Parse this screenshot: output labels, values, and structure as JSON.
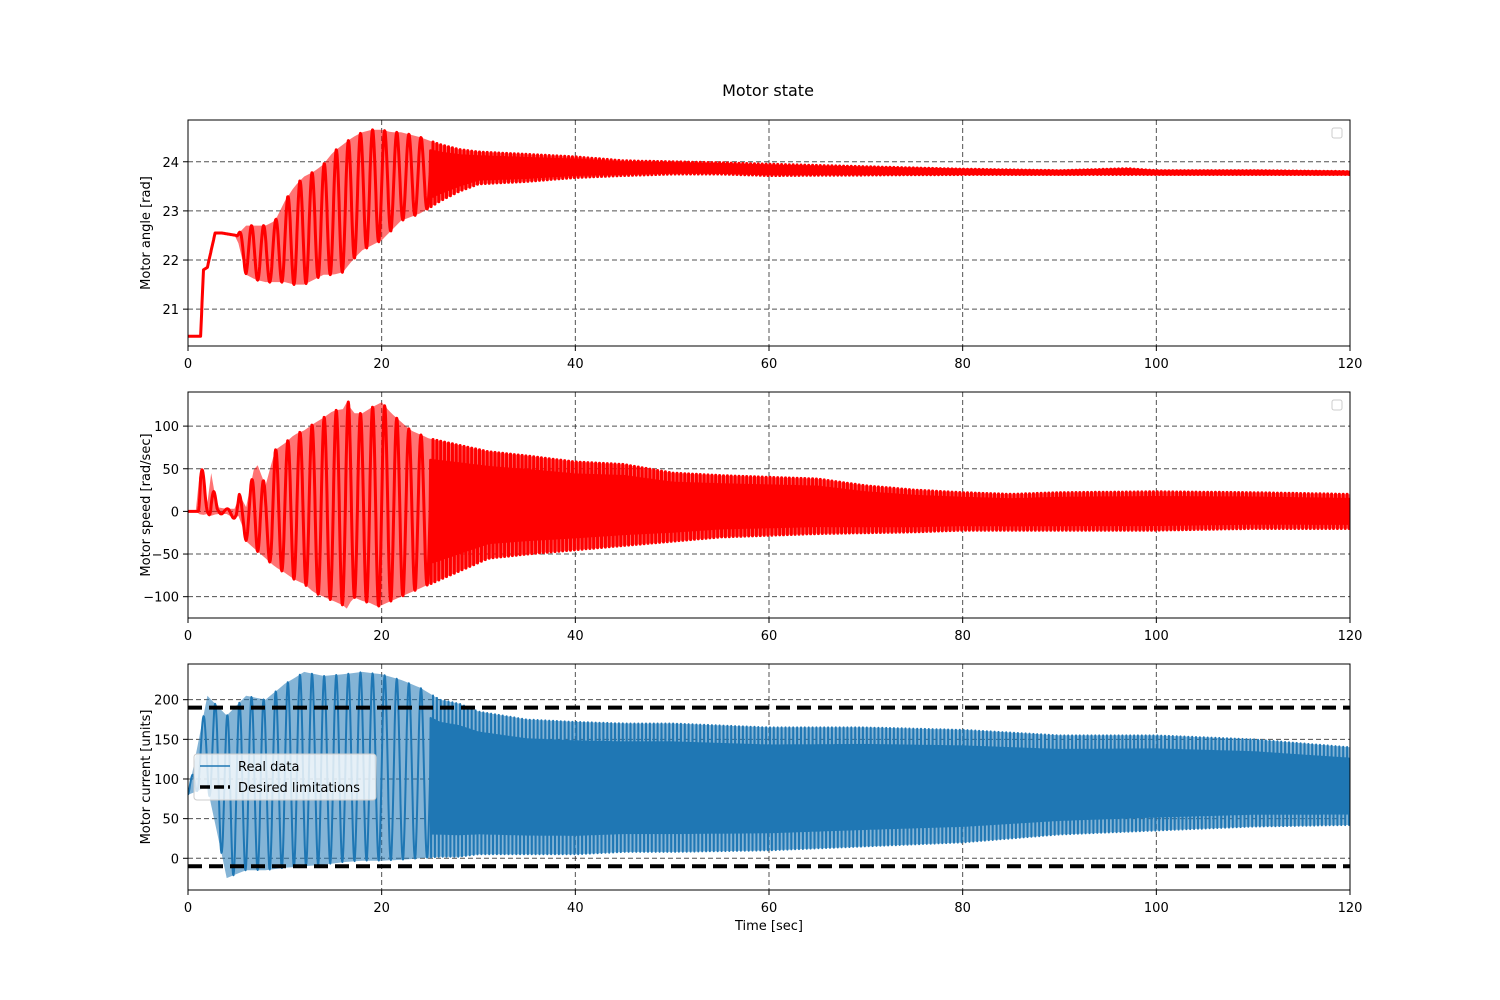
{
  "figure": {
    "title": "Motor state"
  },
  "chart_data": [
    {
      "type": "line",
      "title": "",
      "xlabel": "",
      "ylabel": "Motor angle [rad]",
      "xlim": [
        0,
        120
      ],
      "ylim": [
        20.25,
        24.85
      ],
      "xticks": [
        0,
        20,
        40,
        60,
        80,
        100,
        120
      ],
      "yticks": [
        21,
        22,
        23,
        24
      ],
      "grid": true,
      "legend": {
        "placement": "upper right",
        "entries": []
      },
      "series": [
        {
          "color": "#ff0000",
          "kind": "oscillating-envelope",
          "x": [
            0,
            1.3,
            1.6,
            2.0,
            2.8,
            3.5,
            5,
            6,
            7,
            8,
            9,
            10,
            11,
            12,
            13,
            14,
            15,
            16,
            17,
            18,
            19,
            20,
            21,
            22,
            24,
            26,
            28,
            30,
            35,
            40,
            45,
            50,
            55,
            60,
            70,
            80,
            90,
            97,
            100,
            110,
            120
          ],
          "upper": [
            20.45,
            20.45,
            21.8,
            21.85,
            22.55,
            22.55,
            22.5,
            22.7,
            22.7,
            22.7,
            22.8,
            23.2,
            23.5,
            23.7,
            23.8,
            23.95,
            24.2,
            24.35,
            24.5,
            24.6,
            24.65,
            24.65,
            24.6,
            24.6,
            24.5,
            24.35,
            24.25,
            24.2,
            24.15,
            24.1,
            24.02,
            24.0,
            23.98,
            23.95,
            23.9,
            23.85,
            23.82,
            23.86,
            23.82,
            23.82,
            23.8
          ],
          "lower": [
            20.45,
            20.45,
            21.8,
            21.85,
            22.55,
            22.55,
            22.5,
            21.7,
            21.6,
            21.55,
            21.55,
            21.55,
            21.5,
            21.5,
            21.6,
            21.7,
            21.7,
            21.75,
            22.0,
            22.2,
            22.3,
            22.4,
            22.6,
            22.8,
            22.95,
            23.2,
            23.4,
            23.55,
            23.6,
            23.68,
            23.72,
            23.75,
            23.75,
            23.72,
            23.73,
            23.74,
            23.74,
            23.74,
            23.74,
            23.74,
            23.74
          ]
        }
      ]
    },
    {
      "type": "line",
      "title": "",
      "xlabel": "",
      "ylabel": "Motor speed [rad/sec]",
      "xlim": [
        0,
        120
      ],
      "ylim": [
        -125,
        140
      ],
      "xticks": [
        0,
        20,
        40,
        60,
        80,
        100,
        120
      ],
      "yticks": [
        -100,
        -50,
        0,
        50,
        100
      ],
      "grid": true,
      "legend": {
        "placement": "upper right",
        "entries": []
      },
      "series": [
        {
          "color": "#ff0000",
          "kind": "oscillating-envelope",
          "x": [
            0,
            1.0,
            1.3,
            2.0,
            2.4,
            3,
            4,
            5,
            5.3,
            6,
            7,
            8,
            9,
            10,
            11,
            12,
            13,
            14,
            15,
            16,
            16.5,
            17,
            18,
            19,
            19.5,
            20,
            21,
            22,
            23,
            25,
            27,
            29,
            31,
            35,
            40,
            45,
            50,
            55,
            60,
            65,
            70,
            75,
            80,
            85,
            90,
            100,
            110,
            120
          ],
          "upper": [
            0,
            0,
            65,
            10,
            45,
            5,
            3,
            3,
            20,
            5,
            60,
            30,
            72,
            80,
            90,
            95,
            103,
            110,
            118,
            120,
            130,
            115,
            115,
            122,
            125,
            128,
            115,
            105,
            95,
            85,
            80,
            75,
            70,
            65,
            58,
            55,
            45,
            42,
            40,
            38,
            30,
            25,
            22,
            20,
            22,
            23,
            22,
            20
          ],
          "lower": [
            0,
            0,
            -5,
            -3,
            -5,
            -3,
            -3,
            -10,
            -3,
            -35,
            -45,
            -55,
            -65,
            -72,
            -80,
            -85,
            -95,
            -100,
            -105,
            -110,
            -115,
            -100,
            -105,
            -108,
            -112,
            -110,
            -105,
            -100,
            -95,
            -85,
            -75,
            -65,
            -55,
            -50,
            -45,
            -40,
            -35,
            -30,
            -28,
            -26,
            -25,
            -24,
            -22,
            -22,
            -22,
            -22,
            -20,
            -20
          ]
        }
      ]
    },
    {
      "type": "line",
      "title": "",
      "xlabel": "Time [sec]",
      "ylabel": "Motor current [units]",
      "xlim": [
        0,
        120
      ],
      "ylim": [
        -40,
        245
      ],
      "xticks": [
        0,
        20,
        40,
        60,
        80,
        100,
        120
      ],
      "yticks": [
        0,
        50,
        100,
        150,
        200
      ],
      "grid": true,
      "legend": {
        "placement": "center left",
        "entries": [
          "Real data",
          "Desired limitations"
        ]
      },
      "series": [
        {
          "name": "Real data",
          "color": "#1f77b4",
          "kind": "oscillating-envelope",
          "x": [
            0,
            2,
            4,
            6,
            8,
            10,
            12,
            14,
            16,
            18,
            20,
            22,
            24,
            26,
            28,
            30,
            35,
            40,
            45,
            50,
            60,
            70,
            80,
            90,
            100,
            110,
            120
          ],
          "upper": [
            80,
            205,
            180,
            205,
            200,
            220,
            235,
            230,
            232,
            235,
            232,
            225,
            215,
            200,
            195,
            185,
            175,
            172,
            170,
            170,
            165,
            165,
            162,
            155,
            155,
            150,
            140
          ],
          "lower": [
            80,
            90,
            -25,
            -15,
            -15,
            -12,
            -10,
            -8,
            -5,
            -3,
            -3,
            -2,
            0,
            2,
            2,
            5,
            5,
            5,
            8,
            8,
            10,
            15,
            20,
            30,
            35,
            40,
            42
          ]
        },
        {
          "name": "Desired limitations",
          "color": "#000000",
          "style": "dashed",
          "levels": [
            190,
            -10
          ]
        }
      ]
    }
  ]
}
